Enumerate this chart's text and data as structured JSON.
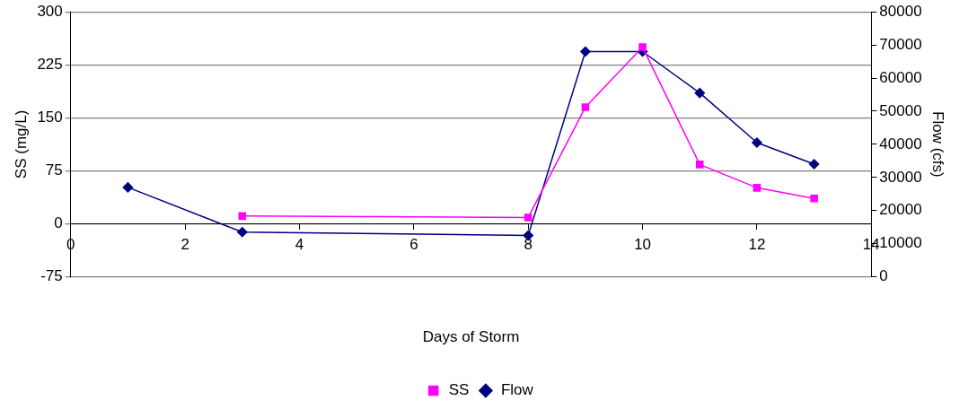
{
  "chart_data": {
    "type": "line",
    "xlabel": "Days of Storm",
    "ylabel": "SS (mg/L)",
    "y2label": "Flow (cfs)",
    "xlim": [
      0,
      14
    ],
    "xticks": [
      0,
      2,
      4,
      6,
      8,
      10,
      12,
      14
    ],
    "ylim": [
      -75,
      300
    ],
    "yticks": [
      -75,
      0,
      75,
      150,
      225,
      300
    ],
    "y2lim": [
      0,
      80000
    ],
    "y2ticks": [
      0,
      10000,
      20000,
      30000,
      40000,
      50000,
      60000,
      70000,
      80000
    ],
    "grid": "y",
    "legend": "bottom",
    "series": [
      {
        "name": "SS",
        "color": "#ff00ff",
        "marker": "square",
        "x": [
          3,
          8,
          9,
          10,
          11,
          12,
          13
        ],
        "values": [
          11,
          9,
          165,
          250,
          84,
          51,
          36
        ]
      },
      {
        "name": "Flow",
        "color": "#000080",
        "marker": "diamond",
        "axis": "y2",
        "x": [
          1,
          3,
          8,
          9,
          10,
          11,
          12,
          13
        ],
        "values": [
          27000,
          13500,
          12500,
          68000,
          68000,
          55500,
          40500,
          34000
        ]
      }
    ]
  }
}
